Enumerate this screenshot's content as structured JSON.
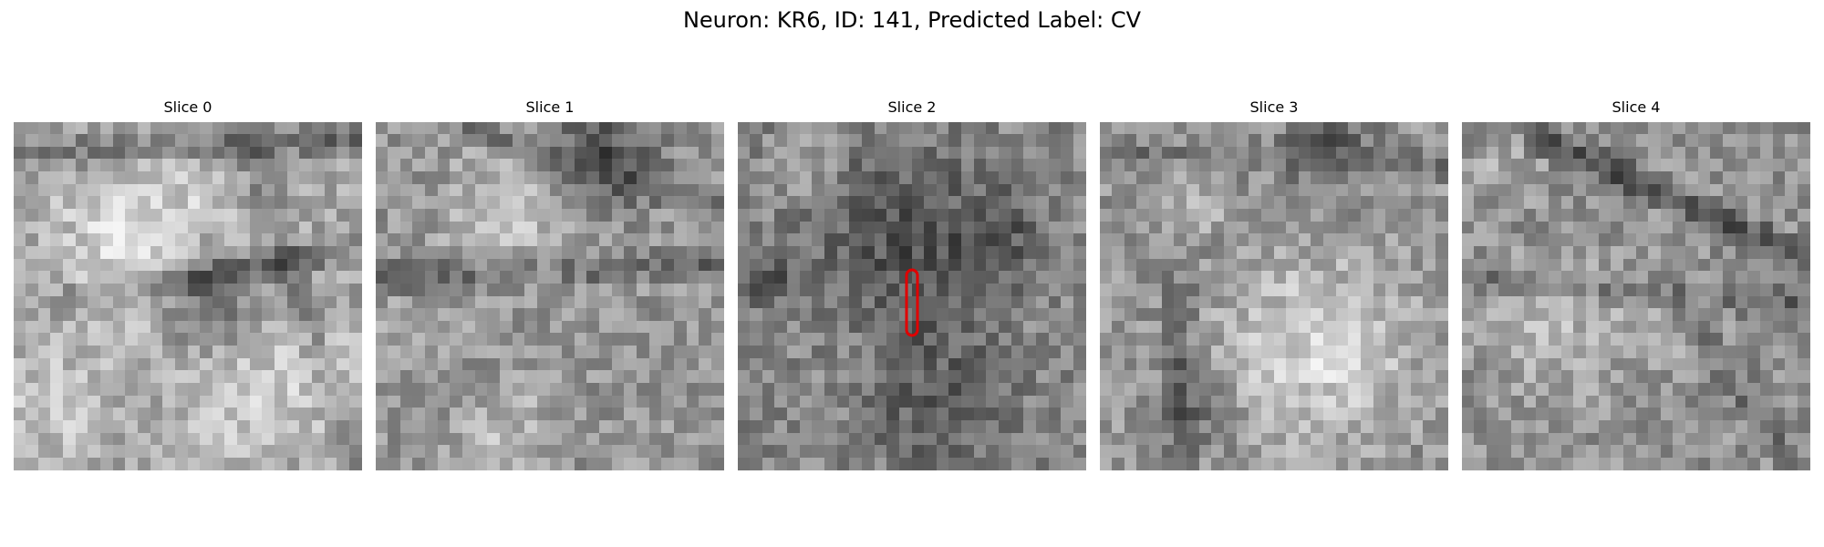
{
  "figure": {
    "title": "Neuron: KR6, ID: 141, Predicted Label: CV"
  },
  "panels": [
    {
      "label": "Slice 0",
      "seed": 11,
      "has_roi": false
    },
    {
      "label": "Slice 1",
      "seed": 29,
      "has_roi": false
    },
    {
      "label": "Slice 2",
      "seed": 47,
      "has_roi": true
    },
    {
      "label": "Slice 3",
      "seed": 83,
      "has_roi": false
    },
    {
      "label": "Slice 4",
      "seed": 97,
      "has_roi": false
    }
  ],
  "colors": {
    "roi_outline": "#e00000"
  },
  "grid_cells": 28
}
